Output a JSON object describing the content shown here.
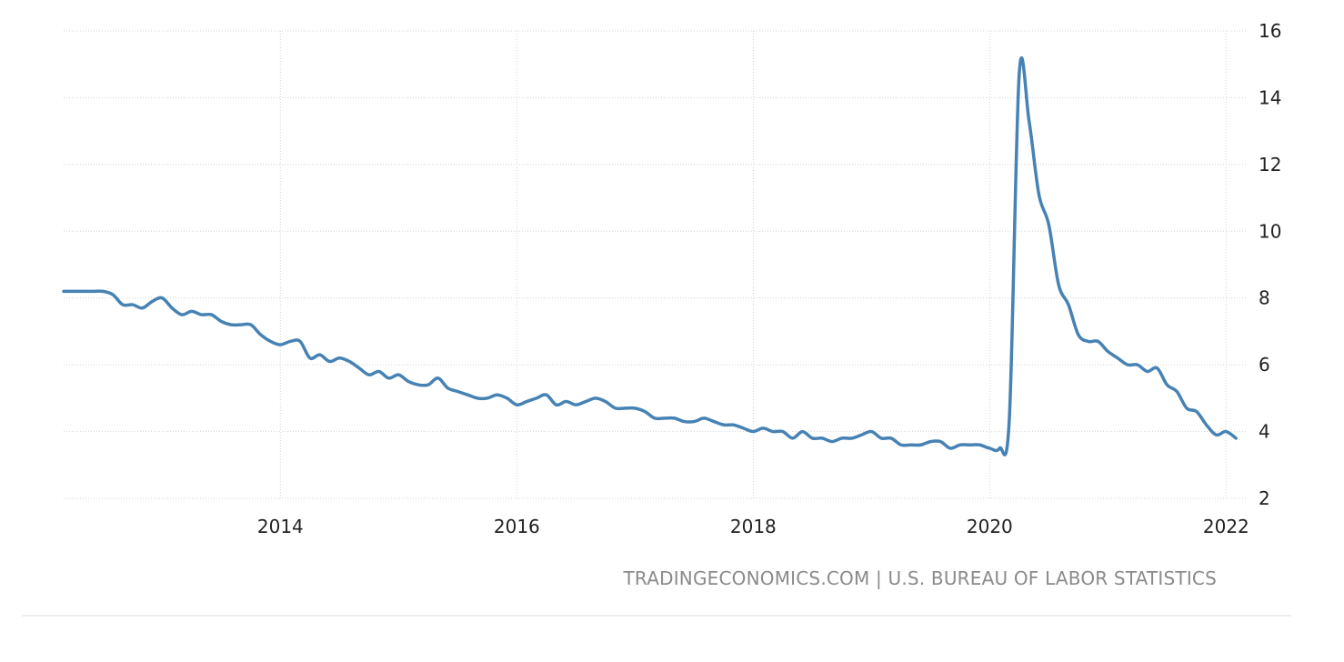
{
  "source": {
    "text": "TRADINGECONOMICS.COM | U.S. BUREAU OF LABOR STATISTICS"
  },
  "colors": {
    "line": "#4682b4",
    "grid": "#d4d4d4",
    "tick_text": "#222222",
    "source_text": "#8a8a8a"
  },
  "chart_data": {
    "type": "line",
    "grid": true,
    "x_tick_labels": [
      "2014",
      "2016",
      "2018",
      "2020",
      "2022"
    ],
    "y_tick_labels": [
      "2",
      "4",
      "6",
      "8",
      "10",
      "12",
      "14",
      "16"
    ],
    "xlim": [
      "2012-03",
      "2022-03"
    ],
    "ylim": [
      2,
      16
    ],
    "series": [
      {
        "points": [
          [
            "2012-03",
            8.2
          ],
          [
            "2012-04",
            8.2
          ],
          [
            "2012-05",
            8.2
          ],
          [
            "2012-06",
            8.2
          ],
          [
            "2012-07",
            8.2
          ],
          [
            "2012-08",
            8.1
          ],
          [
            "2012-09",
            7.8
          ],
          [
            "2012-10",
            7.8
          ],
          [
            "2012-11",
            7.7
          ],
          [
            "2012-12",
            7.9
          ],
          [
            "2013-01",
            8.0
          ],
          [
            "2013-02",
            7.7
          ],
          [
            "2013-03",
            7.5
          ],
          [
            "2013-04",
            7.6
          ],
          [
            "2013-05",
            7.5
          ],
          [
            "2013-06",
            7.5
          ],
          [
            "2013-07",
            7.3
          ],
          [
            "2013-08",
            7.2
          ],
          [
            "2013-09",
            7.2
          ],
          [
            "2013-10",
            7.2
          ],
          [
            "2013-11",
            6.9
          ],
          [
            "2013-12",
            6.7
          ],
          [
            "2014-01",
            6.6
          ],
          [
            "2014-02",
            6.7
          ],
          [
            "2014-03",
            6.7
          ],
          [
            "2014-04",
            6.2
          ],
          [
            "2014-05",
            6.3
          ],
          [
            "2014-06",
            6.1
          ],
          [
            "2014-07",
            6.2
          ],
          [
            "2014-08",
            6.1
          ],
          [
            "2014-09",
            5.9
          ],
          [
            "2014-10",
            5.7
          ],
          [
            "2014-11",
            5.8
          ],
          [
            "2014-12",
            5.6
          ],
          [
            "2015-01",
            5.7
          ],
          [
            "2015-02",
            5.5
          ],
          [
            "2015-03",
            5.4
          ],
          [
            "2015-04",
            5.4
          ],
          [
            "2015-05",
            5.6
          ],
          [
            "2015-06",
            5.3
          ],
          [
            "2015-07",
            5.2
          ],
          [
            "2015-08",
            5.1
          ],
          [
            "2015-09",
            5.0
          ],
          [
            "2015-10",
            5.0
          ],
          [
            "2015-11",
            5.1
          ],
          [
            "2015-12",
            5.0
          ],
          [
            "2016-01",
            4.8
          ],
          [
            "2016-02",
            4.9
          ],
          [
            "2016-03",
            5.0
          ],
          [
            "2016-04",
            5.1
          ],
          [
            "2016-05",
            4.8
          ],
          [
            "2016-06",
            4.9
          ],
          [
            "2016-07",
            4.8
          ],
          [
            "2016-08",
            4.9
          ],
          [
            "2016-09",
            5.0
          ],
          [
            "2016-10",
            4.9
          ],
          [
            "2016-11",
            4.7
          ],
          [
            "2016-12",
            4.7
          ],
          [
            "2017-01",
            4.7
          ],
          [
            "2017-02",
            4.6
          ],
          [
            "2017-03",
            4.4
          ],
          [
            "2017-04",
            4.4
          ],
          [
            "2017-05",
            4.4
          ],
          [
            "2017-06",
            4.3
          ],
          [
            "2017-07",
            4.3
          ],
          [
            "2017-08",
            4.4
          ],
          [
            "2017-09",
            4.3
          ],
          [
            "2017-10",
            4.2
          ],
          [
            "2017-11",
            4.2
          ],
          [
            "2017-12",
            4.1
          ],
          [
            "2018-01",
            4.0
          ],
          [
            "2018-02",
            4.1
          ],
          [
            "2018-03",
            4.0
          ],
          [
            "2018-04",
            4.0
          ],
          [
            "2018-05",
            3.8
          ],
          [
            "2018-06",
            4.0
          ],
          [
            "2018-07",
            3.8
          ],
          [
            "2018-08",
            3.8
          ],
          [
            "2018-09",
            3.7
          ],
          [
            "2018-10",
            3.8
          ],
          [
            "2018-11",
            3.8
          ],
          [
            "2018-12",
            3.9
          ],
          [
            "2019-01",
            4.0
          ],
          [
            "2019-02",
            3.8
          ],
          [
            "2019-03",
            3.8
          ],
          [
            "2019-04",
            3.6
          ],
          [
            "2019-05",
            3.6
          ],
          [
            "2019-06",
            3.6
          ],
          [
            "2019-07",
            3.7
          ],
          [
            "2019-08",
            3.7
          ],
          [
            "2019-09",
            3.5
          ],
          [
            "2019-10",
            3.6
          ],
          [
            "2019-11",
            3.6
          ],
          [
            "2019-12",
            3.6
          ],
          [
            "2020-01",
            3.5
          ],
          [
            "2020-02",
            3.5
          ],
          [
            "2020-03",
            4.4
          ],
          [
            "2020-04",
            14.7
          ],
          [
            "2020-05",
            13.3
          ],
          [
            "2020-06",
            11.1
          ],
          [
            "2020-07",
            10.2
          ],
          [
            "2020-08",
            8.4
          ],
          [
            "2020-09",
            7.8
          ],
          [
            "2020-10",
            6.9
          ],
          [
            "2020-11",
            6.7
          ],
          [
            "2020-12",
            6.7
          ],
          [
            "2021-01",
            6.4
          ],
          [
            "2021-02",
            6.2
          ],
          [
            "2021-03",
            6.0
          ],
          [
            "2021-04",
            6.0
          ],
          [
            "2021-05",
            5.8
          ],
          [
            "2021-06",
            5.9
          ],
          [
            "2021-07",
            5.4
          ],
          [
            "2021-08",
            5.2
          ],
          [
            "2021-09",
            4.7
          ],
          [
            "2021-10",
            4.6
          ],
          [
            "2021-11",
            4.2
          ],
          [
            "2021-12",
            3.9
          ],
          [
            "2022-01",
            4.0
          ],
          [
            "2022-02",
            3.8
          ]
        ]
      }
    ]
  }
}
